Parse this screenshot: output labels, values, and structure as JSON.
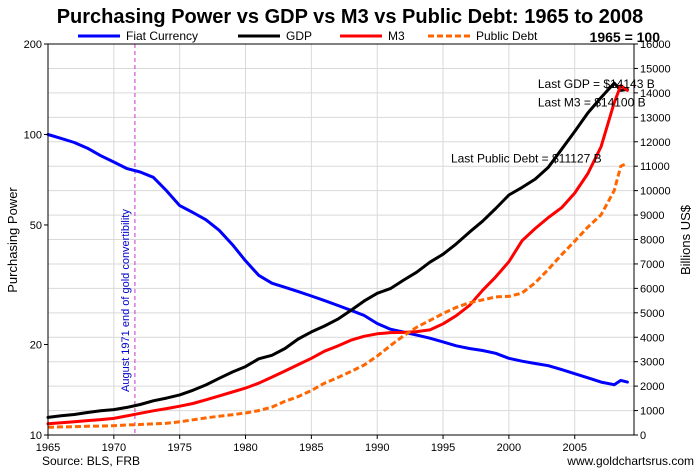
{
  "chart_data": {
    "type": "line",
    "title": "Purchasing Power vs GDP vs M3 vs Public Debt: 1965 to 2008",
    "base_note": "1965 = 100",
    "source": "Source: BLS, FRB",
    "website": "www.goldchartsrus.com",
    "ylabel_left": "Purchasing Power",
    "ylabel_right": "Billions US$",
    "xlim": [
      1965,
      2009.5
    ],
    "ylim_left": [
      10,
      200
    ],
    "left_scale": "log",
    "ylim_right": [
      0,
      16000
    ],
    "x_ticks": [
      "1965",
      "1970",
      "1975",
      "1980",
      "1985",
      "1990",
      "1995",
      "2000",
      "2005"
    ],
    "y_left_ticks": [
      "10",
      "20",
      "50",
      "100",
      "200"
    ],
    "y_right_ticks": [
      "0",
      "1000",
      "2000",
      "3000",
      "4000",
      "5000",
      "6000",
      "7000",
      "8000",
      "9000",
      "10000",
      "11000",
      "12000",
      "13000",
      "14000",
      "15000",
      "16000"
    ],
    "grid": true,
    "legend_position": "top",
    "event": {
      "x": 1971.6,
      "label": "August 1971 end of gold convertibility",
      "color": "#cc33cc"
    },
    "annotations": [
      {
        "text": "Last GDP = $14143 B",
        "x": 2002.2,
        "y": 14200
      },
      {
        "text": "Last M3 = $14100 B",
        "x": 2002.2,
        "y": 13450
      },
      {
        "text": "Last Public Debt = $11127 B",
        "x": 1995.6,
        "y": 11150
      }
    ],
    "series": [
      {
        "name": "Fiat Currency",
        "axis": "left",
        "color": "#0000ff",
        "style": "solid",
        "x": [
          1965,
          1966,
          1967,
          1968,
          1969,
          1970,
          1971,
          1972,
          1973,
          1974,
          1975,
          1976,
          1977,
          1978,
          1979,
          1980,
          1981,
          1982,
          1983,
          1984,
          1985,
          1986,
          1987,
          1988,
          1989,
          1990,
          1991,
          1992,
          1993,
          1994,
          1995,
          1996,
          1997,
          1998,
          1999,
          2000,
          2001,
          2002,
          2003,
          2004,
          2005,
          2006,
          2007,
          2008,
          2008.5,
          2009
        ],
        "values": [
          100,
          97,
          94,
          90,
          85,
          81,
          77,
          75,
          72,
          65,
          58,
          55,
          52,
          48,
          43,
          38,
          34,
          32,
          31,
          30,
          29,
          28,
          27,
          26,
          25,
          23.5,
          22.5,
          22,
          21.5,
          21,
          20.4,
          19.8,
          19.4,
          19.1,
          18.7,
          18,
          17.6,
          17.3,
          17,
          16.5,
          16,
          15.5,
          15,
          14.7,
          15.2,
          15
        ]
      },
      {
        "name": "GDP",
        "axis": "right",
        "color": "#000000",
        "style": "solid",
        "x": [
          1965,
          1966,
          1967,
          1968,
          1969,
          1970,
          1971,
          1972,
          1973,
          1974,
          1975,
          1976,
          1977,
          1978,
          1979,
          1980,
          1981,
          1982,
          1983,
          1984,
          1985,
          1986,
          1987,
          1988,
          1989,
          1990,
          1991,
          1992,
          1993,
          1994,
          1995,
          1996,
          1997,
          1998,
          1999,
          2000,
          2001,
          2002,
          2003,
          2004,
          2005,
          2006,
          2007,
          2008,
          2008.5,
          2009
        ],
        "values": [
          720,
          790,
          840,
          920,
          990,
          1040,
          1130,
          1250,
          1400,
          1510,
          1640,
          1830,
          2050,
          2320,
          2580,
          2800,
          3120,
          3260,
          3540,
          3930,
          4220,
          4460,
          4740,
          5100,
          5480,
          5800,
          5990,
          6340,
          6660,
          7070,
          7400,
          7820,
          8300,
          8750,
          9270,
          9820,
          10130,
          10470,
          10960,
          11690,
          12420,
          13180,
          13810,
          14400,
          14100,
          14143
        ]
      },
      {
        "name": "M3",
        "axis": "right",
        "color": "#ff0000",
        "style": "solid",
        "x": [
          1965,
          1966,
          1967,
          1968,
          1969,
          1970,
          1971,
          1972,
          1973,
          1974,
          1975,
          1976,
          1977,
          1978,
          1979,
          1980,
          1981,
          1982,
          1983,
          1984,
          1985,
          1986,
          1987,
          1988,
          1989,
          1990,
          1991,
          1992,
          1993,
          1994,
          1995,
          1996,
          1997,
          1998,
          1999,
          2000,
          2001,
          2002,
          2003,
          2004,
          2005,
          2006,
          2007,
          2008,
          2008.5,
          2009
        ],
        "values": [
          460,
          500,
          540,
          590,
          630,
          680,
          780,
          890,
          990,
          1080,
          1180,
          1290,
          1440,
          1600,
          1760,
          1920,
          2120,
          2370,
          2620,
          2880,
          3140,
          3430,
          3640,
          3880,
          4040,
          4140,
          4190,
          4200,
          4230,
          4300,
          4550,
          4880,
          5300,
          5920,
          6470,
          7090,
          7950,
          8450,
          8900,
          9300,
          9900,
          10700,
          11800,
          13600,
          14300,
          14100
        ]
      },
      {
        "name": "Public Debt",
        "axis": "right",
        "color": "#ff6600",
        "style": "dashed",
        "x": [
          1965,
          1966,
          1967,
          1968,
          1969,
          1970,
          1971,
          1972,
          1973,
          1974,
          1975,
          1976,
          1977,
          1978,
          1979,
          1980,
          1981,
          1982,
          1983,
          1984,
          1985,
          1986,
          1987,
          1988,
          1989,
          1990,
          1991,
          1992,
          1993,
          1994,
          1995,
          1996,
          1997,
          1998,
          1999,
          2000,
          2001,
          2002,
          2003,
          2004,
          2005,
          2006,
          2007,
          2008,
          2008.5,
          2009
        ],
        "values": [
          320,
          330,
          340,
          360,
          365,
          380,
          410,
          430,
          460,
          480,
          540,
          620,
          700,
          770,
          830,
          900,
          1000,
          1140,
          1380,
          1570,
          1820,
          2120,
          2350,
          2600,
          2860,
          3230,
          3660,
          4060,
          4410,
          4690,
          4970,
          5220,
          5410,
          5530,
          5650,
          5670,
          5810,
          6230,
          6780,
          7380,
          7930,
          8510,
          9010,
          10000,
          11000,
          11127
        ]
      }
    ]
  }
}
